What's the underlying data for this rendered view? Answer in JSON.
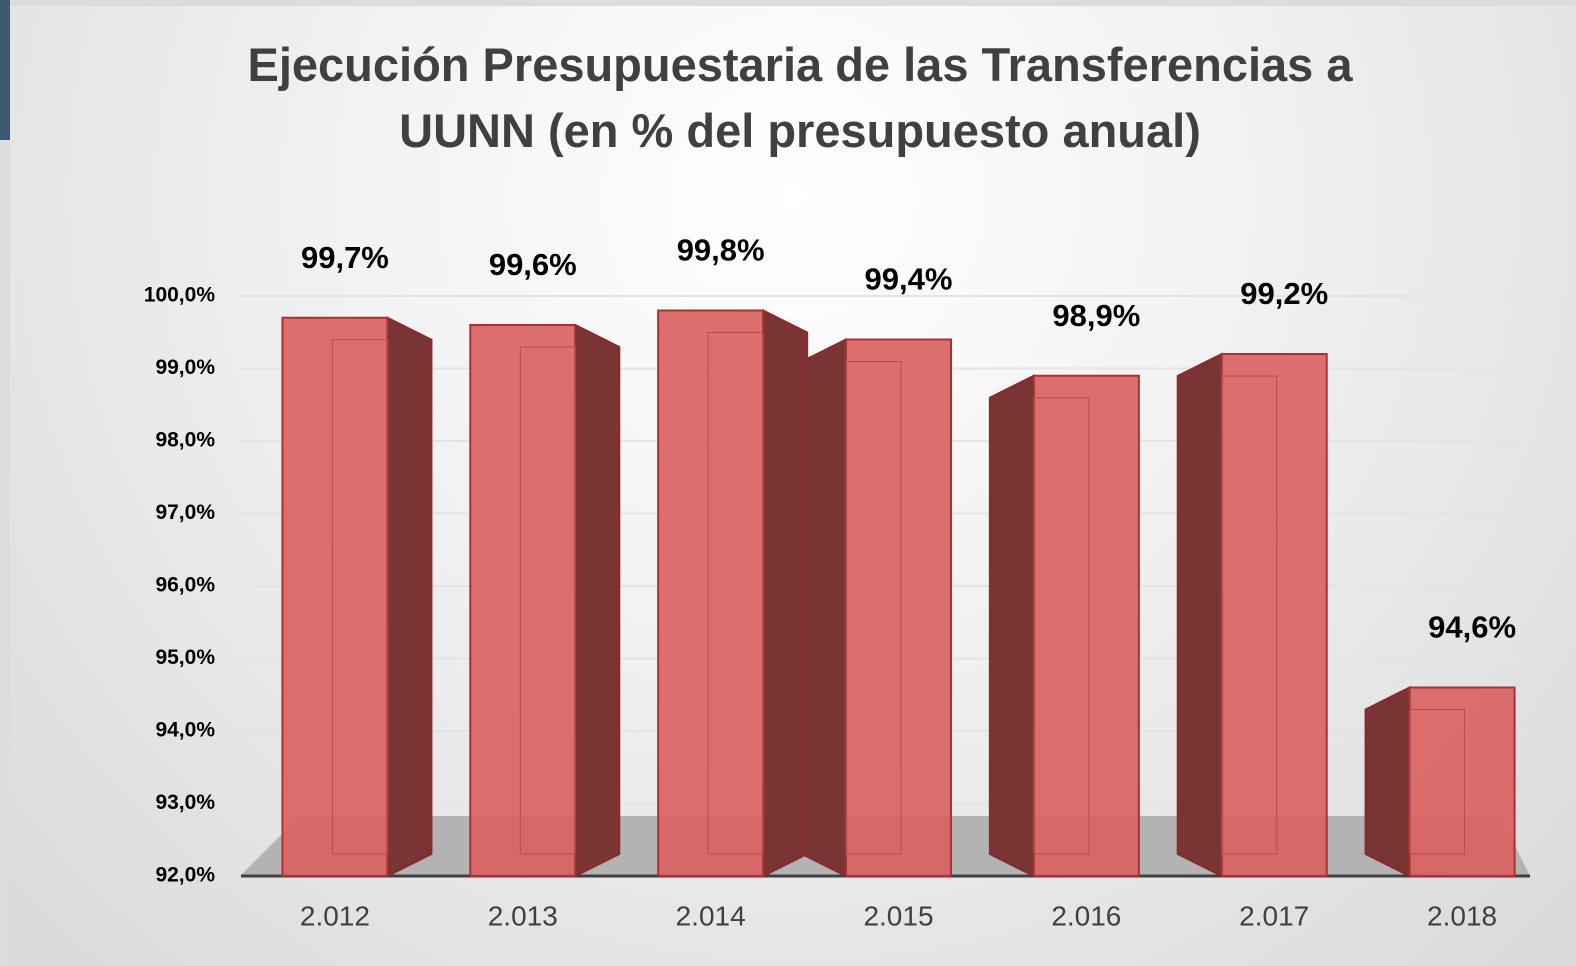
{
  "chart_data": {
    "type": "bar",
    "title": "Ejecución Presupuestaria de las Transferencias a UUNN (en % del presupuesto anual)",
    "categories": [
      "2.012",
      "2.013",
      "2.014",
      "2.015",
      "2.016",
      "2.017",
      "2.018"
    ],
    "values": [
      99.7,
      99.6,
      99.8,
      99.4,
      98.9,
      99.2,
      94.6
    ],
    "value_labels": [
      "99,7%",
      "99,6%",
      "99,8%",
      "99,4%",
      "98,9%",
      "99,2%",
      "94,6%"
    ],
    "color": "#d9605f",
    "ylim": [
      92,
      100
    ],
    "yticks": [
      {
        "value": 92,
        "label": "92,0%"
      },
      {
        "value": 93,
        "label": "93,0%"
      },
      {
        "value": 94,
        "label": "94,0%"
      },
      {
        "value": 95,
        "label": "95,0%"
      },
      {
        "value": 96,
        "label": "96,0%"
      },
      {
        "value": 97,
        "label": "97,0%"
      },
      {
        "value": 98,
        "label": "98,0%"
      },
      {
        "value": 99,
        "label": "99,0%"
      },
      {
        "value": 100,
        "label": "100,0%"
      }
    ],
    "grid": true
  }
}
